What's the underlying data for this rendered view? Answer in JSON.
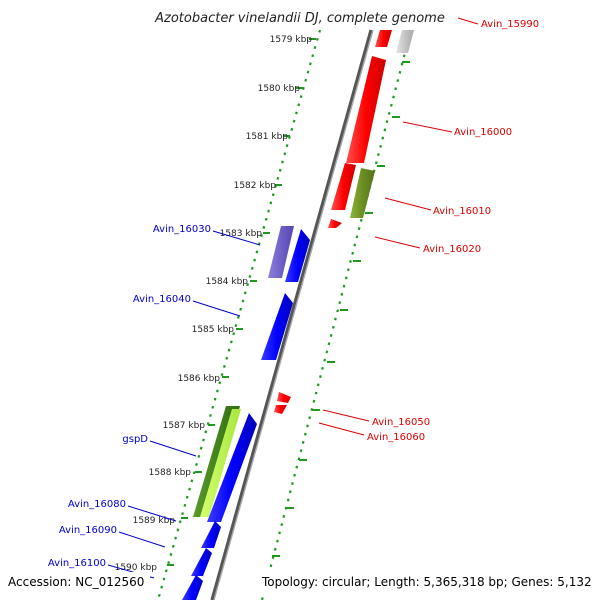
{
  "title": "Azotobacter vinelandii DJ, complete genome",
  "accession_text": "Accession: NC_012560",
  "summary_text": "Topology: circular; Length: 5,365,318 bp; Genes: 5,132",
  "colors": {
    "backbone": "#777777",
    "forward_gene": "#ff0000",
    "reverse_gene": "#0000ff",
    "pseudo_gene": "#bbbbbb",
    "green_dark": "#4a8a1e",
    "green_light": "#b8f050",
    "olive": "#6b8e23",
    "purple": "#7766cc",
    "tick_dots": "#1e9a1e",
    "forward_label": "#dd0000",
    "reverse_label": "#0000cc"
  },
  "kbp_ticks": [
    "1579 kbp",
    "1580 kbp",
    "1581 kbp",
    "1582 kbp",
    "1583 kbp",
    "1584 kbp",
    "1585 kbp",
    "1586 kbp",
    "1587 kbp",
    "1588 kbp",
    "1589 kbp",
    "1590 kbp"
  ],
  "forward_labels": [
    "Avin_15990",
    "Avin_16000",
    "Avin_16010",
    "Avin_16020",
    "Avin_16050",
    "Avin_16060"
  ],
  "reverse_labels": [
    "Avin_16030",
    "Avin_16040",
    "gspD",
    "Avin_16080",
    "Avin_16090",
    "Avin_16100"
  ]
}
